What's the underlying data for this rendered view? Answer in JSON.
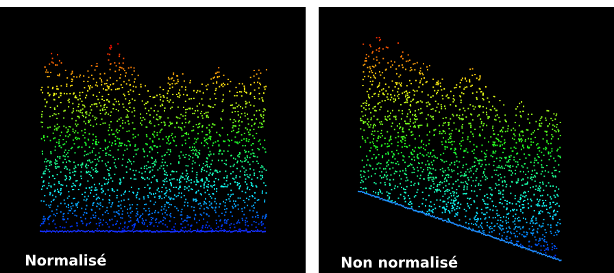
{
  "panels": [
    {
      "label": "Normalisé"
    },
    {
      "label": "Non normalisé"
    }
  ]
}
